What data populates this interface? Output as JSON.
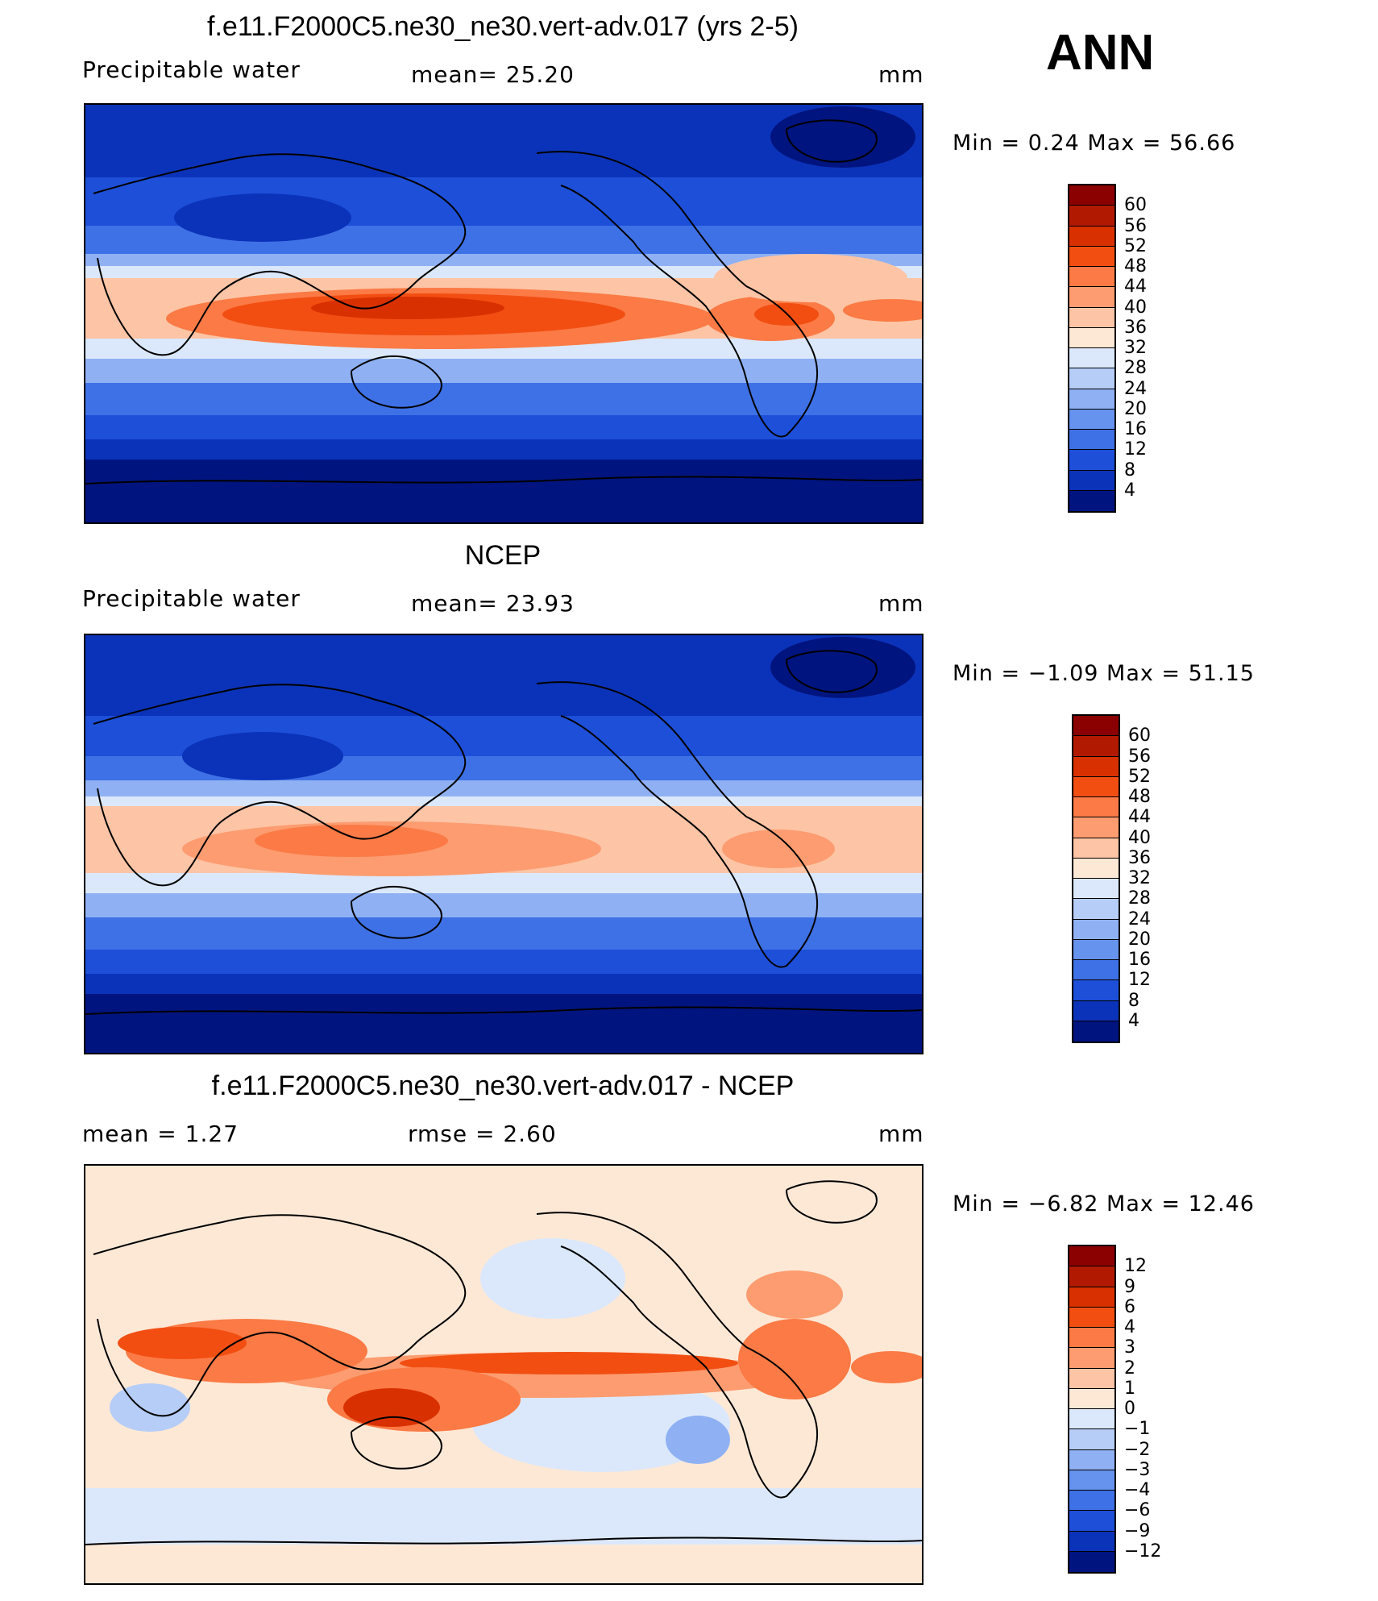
{
  "season": "ANN",
  "panels": [
    {
      "id": "model",
      "title": "f.e11.F2000C5.ne30_ne30.vert-adv.017 (yrs 2-5)",
      "left_label": "Precipitable  water",
      "mid_label": "mean=   25.20",
      "units": "mm",
      "minmax": "Min  =     0.24  Max  =    56.66",
      "levels": [
        "60",
        "56",
        "52",
        "48",
        "44",
        "40",
        "36",
        "32",
        "28",
        "24",
        "20",
        "16",
        "12",
        "8",
        "4"
      ],
      "colors": [
        "#8b0000",
        "#b11a00",
        "#d93000",
        "#f24e12",
        "#fb7a45",
        "#fc9c70",
        "#fdc4a5",
        "#fde8d6",
        "#dbe8fb",
        "#b5cdf7",
        "#8fb1f3",
        "#6693ee",
        "#3f71e6",
        "#1d4fd9",
        "#0b33b9",
        "#00147f"
      ]
    },
    {
      "id": "obs",
      "title": "NCEP",
      "left_label": "Precipitable  water",
      "mid_label": "mean=   23.93",
      "units": "mm",
      "minmax": "Min  =   −1.09  Max  =    51.15",
      "levels": [
        "60",
        "56",
        "52",
        "48",
        "44",
        "40",
        "36",
        "32",
        "28",
        "24",
        "20",
        "16",
        "12",
        "8",
        "4"
      ],
      "colors": [
        "#8b0000",
        "#b11a00",
        "#d93000",
        "#f24e12",
        "#fb7a45",
        "#fc9c70",
        "#fdc4a5",
        "#fde8d6",
        "#dbe8fb",
        "#b5cdf7",
        "#8fb1f3",
        "#6693ee",
        "#3f71e6",
        "#1d4fd9",
        "#0b33b9",
        "#00147f"
      ]
    },
    {
      "id": "diff",
      "title": "f.e11.F2000C5.ne30_ne30.vert-adv.017 - NCEP",
      "left_label": "mean  =     1.27",
      "mid_label": "rmse  =     2.60",
      "units": "mm",
      "minmax": "Min  =   −6.82  Max  =    12.46",
      "levels": [
        "12",
        "9",
        "6",
        "4",
        "3",
        "2",
        "1",
        "0",
        "−1",
        "−2",
        "−3",
        "−4",
        "−6",
        "−9",
        "−12"
      ],
      "colors": [
        "#8b0000",
        "#b11a00",
        "#d93000",
        "#f24e12",
        "#fb7a45",
        "#fc9c70",
        "#fdc4a5",
        "#fde8d6",
        "#dbe8fb",
        "#b5cdf7",
        "#8fb1f3",
        "#6693ee",
        "#3f71e6",
        "#1d4fd9",
        "#0b33b9",
        "#00147f"
      ]
    }
  ]
}
